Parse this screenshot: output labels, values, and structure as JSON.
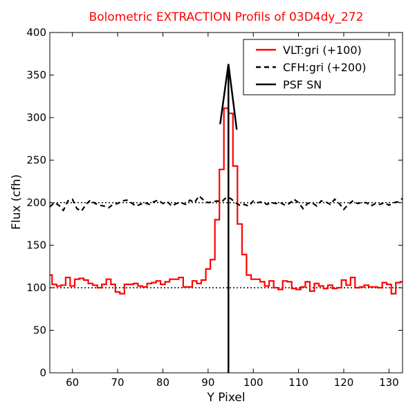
{
  "chart_data": {
    "type": "line",
    "title": "Bolometric EXTRACTION Profils of 03D4dy_272",
    "xlabel": "Y Pixel",
    "ylabel": "Flux (cfh)",
    "xlim": [
      55,
      133
    ],
    "ylim": [
      0,
      400
    ],
    "xticks": [
      60,
      70,
      80,
      90,
      100,
      110,
      120,
      130
    ],
    "yticks": [
      0,
      50,
      100,
      150,
      200,
      250,
      300,
      350,
      400
    ],
    "grid": false,
    "legend_position": "top-right",
    "reference_lines": [
      100,
      200
    ],
    "series": [
      {
        "name": "VLT:gri (+100)",
        "style": "steps",
        "color": "#ff0000",
        "x": [
          55,
          56,
          57,
          58,
          59,
          60,
          61,
          62,
          63,
          64,
          65,
          66,
          67,
          68,
          69,
          70,
          71,
          72,
          73,
          74,
          75,
          76,
          77,
          78,
          79,
          80,
          81,
          82,
          83,
          84,
          85,
          86,
          87,
          88,
          89,
          90,
          91,
          92,
          93,
          94,
          95,
          96,
          97,
          98,
          99,
          100,
          101,
          102,
          103,
          104,
          105,
          106,
          107,
          108,
          109,
          110,
          111,
          112,
          113,
          114,
          115,
          116,
          117,
          118,
          119,
          120,
          121,
          122,
          123,
          124,
          125,
          126,
          127,
          128,
          129,
          130,
          131,
          132,
          133
        ],
        "y": [
          115,
          104,
          102,
          103,
          112,
          102,
          110,
          111,
          109,
          105,
          103,
          100,
          104,
          110,
          104,
          95,
          93,
          104,
          104,
          105,
          102,
          101,
          105,
          106,
          108,
          104,
          107,
          110,
          110,
          112,
          101,
          101,
          108,
          105,
          109,
          122,
          133,
          180,
          239,
          311,
          305,
          243,
          175,
          139,
          115,
          110,
          110,
          107,
          102,
          108,
          100,
          98,
          108,
          107,
          99,
          98,
          101,
          107,
          96,
          105,
          102,
          99,
          103,
          99,
          100,
          109,
          103,
          112,
          100,
          101,
          103,
          101,
          101,
          100,
          106,
          104,
          93,
          106,
          107
        ]
      },
      {
        "name": "CFH:gri (+200)",
        "style": "dashed",
        "color": "#000000",
        "x": [
          55,
          56,
          57,
          58,
          59,
          60,
          61,
          62,
          63,
          64,
          65,
          66,
          67,
          68,
          69,
          70,
          71,
          72,
          73,
          74,
          75,
          76,
          77,
          78,
          79,
          80,
          81,
          82,
          83,
          84,
          85,
          86,
          87,
          88,
          89,
          90,
          91,
          92,
          93,
          94,
          95,
          96,
          97,
          98,
          99,
          100,
          101,
          102,
          103,
          104,
          105,
          106,
          107,
          108,
          109,
          110,
          111,
          112,
          113,
          114,
          115,
          116,
          117,
          118,
          119,
          120,
          121,
          122,
          123,
          124,
          125,
          126,
          127,
          128,
          129,
          130,
          131,
          132,
          133
        ],
        "y": [
          195,
          200,
          197,
          191,
          202,
          204,
          193,
          190,
          198,
          203,
          199,
          197,
          196,
          194,
          198,
          199,
          202,
          203,
          200,
          196,
          198,
          200,
          198,
          201,
          203,
          199,
          201,
          196,
          199,
          200,
          198,
          203,
          200,
          208,
          203,
          200,
          201,
          202,
          201,
          206,
          205,
          200,
          197,
          198,
          196,
          202,
          200,
          201,
          198,
          200,
          199,
          200,
          197,
          199,
          204,
          200,
          193,
          199,
          200,
          196,
          202,
          201,
          198,
          204,
          199,
          192,
          198,
          202,
          199,
          200,
          200,
          196,
          199,
          198,
          200,
          197,
          200,
          201,
          205
        ]
      },
      {
        "name": "PSF SN",
        "style": "solid-arrow",
        "color": "#000000",
        "x": [
          94.5,
          94.5
        ],
        "y": [
          0,
          363
        ]
      }
    ]
  }
}
